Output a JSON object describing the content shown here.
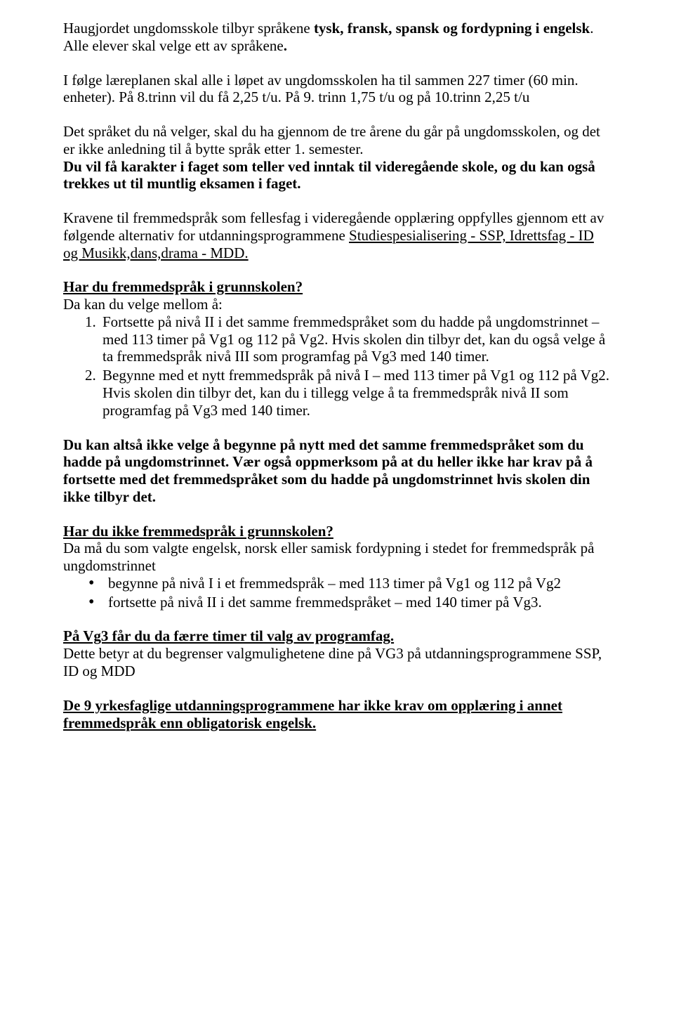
{
  "styles": {
    "font_family": "Times New Roman",
    "body_font_size_pt": 16,
    "text_color": "#000000",
    "background_color": "#ffffff",
    "line_height": 1.18
  },
  "p1_pre": "Haugjordet ungdomsskole tilbyr språkene ",
  "p1_bold": "tysk, fransk, spansk og fordypning i engelsk",
  "p1_post": ". Alle elever skal velge ett av språkene",
  "p1_bold_dot": ".",
  "p2": "I følge læreplanen skal alle i løpet av ungdomsskolen ha til sammen 227 timer (60 min. enheter). På 8.trinn vil du få 2,25 t/u. På 9. trinn 1,75 t/u og på 10.trinn 2,25 t/u",
  "p3_a": "Det språket du nå velger, skal du ha gjennom de tre årene du går på ungdomsskolen, og det er ikke anledning til å bytte språk etter 1. semester.",
  "p3_b_bold": "Du vil få karakter i faget som teller ved inntak til videregående skole, og du kan også trekkes ut til muntlig eksamen i faget.",
  "p4_a": "Kravene til fremmedspråk som fellesfag i videregående opplæring oppfylles gjennom ett av følgende alternativ for utdanningsprogrammene ",
  "p4_u": "Studiespesialisering - SSP, Idrettsfag - ID og Musikk,dans,drama - MDD.",
  "h1": "Har du fremmedspråk i grunnskolen?",
  "h1_sub": "Da kan du velge mellom å:",
  "ol": [
    "Fortsette på nivå II i det samme fremmedspråket som du hadde på ungdomstrinnet – med 113 timer på Vg1 og 112 på Vg2. Hvis skolen din tilbyr det, kan du også velge å ta fremmedspråk nivå III som programfag på Vg3 med 140 timer.",
    "Begynne med et nytt fremmedspråk på nivå I – med 113 timer på Vg1 og 112 på Vg2. Hvis skolen din tilbyr det, kan du i tillegg velge å ta fremmedspråk nivå II som programfag på Vg3 med 140 timer."
  ],
  "p5_bold": "Du kan altså ikke velge å begynne på nytt med det samme fremmedspråket som du hadde på ungdomstrinnet. Vær også oppmerksom på at du heller ikke har krav på å fortsette med det fremmedspråket som du hadde på ungdomstrinnet hvis skolen din ikke tilbyr det.",
  "h2": "Har du ikke fremmedspråk i grunnskolen?",
  "h2_sub": "Da må du som valgte engelsk, norsk eller samisk fordypning i stedet for fremmedspråk på ungdomstrinnet",
  "ul": [
    "begynne på nivå I i et fremmedspråk  – med 113 timer på Vg1 og 112 på Vg2",
    "fortsette på nivå II i det samme fremmedspråket – med 140 timer på Vg3."
  ],
  "h3": "På Vg3 får du da færre timer til valg av programfag.",
  "h3_sub": "Dette betyr at du begrenser valgmulighetene dine på VG3 på utdanningsprogrammene SSP, ID og MDD",
  "p_last": "De 9 yrkesfaglige utdanningsprogrammene har ikke krav om opplæring i annet fremmedspråk enn obligatorisk engelsk."
}
